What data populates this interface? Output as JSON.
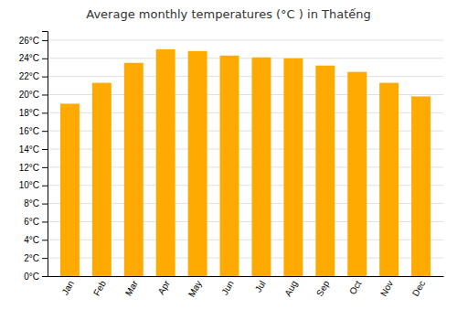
{
  "chart_data": {
    "type": "bar",
    "title": "Average monthly temperatures (°C ) in Thatếng",
    "categories": [
      "Jan",
      "Feb",
      "Mar",
      "Apr",
      "May",
      "Jun",
      "Jul",
      "Aug",
      "Sep",
      "Oct",
      "Nov",
      "Dec"
    ],
    "values": [
      19.0,
      21.3,
      23.5,
      25.0,
      24.8,
      24.3,
      24.1,
      24.0,
      23.2,
      22.5,
      21.3,
      19.8
    ],
    "color": "#FFAA00",
    "ylim": [
      0,
      27
    ],
    "yticks": [
      {
        "value": 0,
        "label": "0°C"
      },
      {
        "value": 2,
        "label": "2°C"
      },
      {
        "value": 4,
        "label": "4°C"
      },
      {
        "value": 6,
        "label": "6°C"
      },
      {
        "value": 8,
        "label": "8°C"
      },
      {
        "value": 10,
        "label": "10°C"
      },
      {
        "value": 12,
        "label": "12°C"
      },
      {
        "value": 14,
        "label": "14°C"
      },
      {
        "value": 16,
        "label": "16°C"
      },
      {
        "value": 18,
        "label": "18°C"
      },
      {
        "value": 20,
        "label": "20°C"
      },
      {
        "value": 22,
        "label": "22°C"
      },
      {
        "value": 24,
        "label": "24°C"
      },
      {
        "value": 26,
        "label": "26°C"
      }
    ],
    "grid": true
  }
}
